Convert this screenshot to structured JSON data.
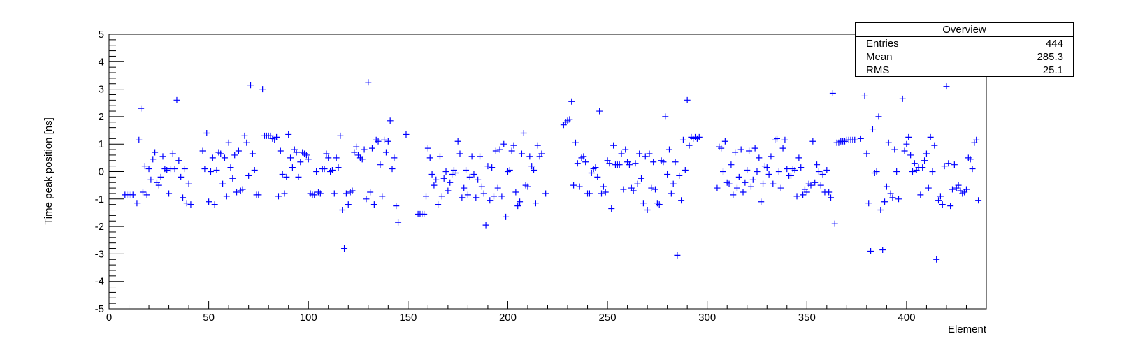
{
  "stats": {
    "title": "Overview",
    "rows": [
      {
        "label": "Entries",
        "value": "444"
      },
      {
        "label": "Mean",
        "value": "285.3"
      },
      {
        "label": "RMS",
        "value": "25.1"
      }
    ]
  },
  "chart_data": {
    "type": "scatter",
    "title": "",
    "xlabel": "Element",
    "ylabel": "Time peak position [ns]",
    "xlim": [
      0,
      440
    ],
    "ylim": [
      -5,
      5
    ],
    "xticks": [
      0,
      50,
      100,
      150,
      200,
      250,
      300,
      350,
      400
    ],
    "xtick_labels": [
      "0",
      "50",
      "100",
      "150",
      "200",
      "250",
      "300",
      "350",
      "400"
    ],
    "yticks": [
      -5,
      -4,
      -3,
      -2,
      -1,
      0,
      1,
      2,
      3,
      4,
      5
    ],
    "ytick_labels": [
      "-5",
      "-4",
      "-3",
      "-2",
      "-1",
      "0",
      "1",
      "2",
      "3",
      "4",
      "5"
    ],
    "marker": "+",
    "marker_color": "#0000ff",
    "grid": false,
    "points": [
      [
        8,
        -0.85
      ],
      [
        9,
        -0.85
      ],
      [
        10,
        -0.85
      ],
      [
        11,
        -0.85
      ],
      [
        12,
        -0.85
      ],
      [
        14,
        -1.15
      ],
      [
        15,
        1.15
      ],
      [
        16,
        2.3
      ],
      [
        17,
        -0.75
      ],
      [
        18,
        0.2
      ],
      [
        19,
        -0.85
      ],
      [
        20,
        0.1
      ],
      [
        21,
        -0.3
      ],
      [
        22,
        0.45
      ],
      [
        23,
        0.7
      ],
      [
        24,
        -0.4
      ],
      [
        25,
        -0.5
      ],
      [
        26,
        -0.2
      ],
      [
        27,
        0.55
      ],
      [
        28,
        0.1
      ],
      [
        29,
        0.05
      ],
      [
        30,
        -0.8
      ],
      [
        31,
        0.1
      ],
      [
        32,
        0.65
      ],
      [
        33,
        0.1
      ],
      [
        34,
        2.6
      ],
      [
        35,
        0.4
      ],
      [
        36,
        -0.2
      ],
      [
        37,
        -0.95
      ],
      [
        38,
        0.1
      ],
      [
        39,
        -1.15
      ],
      [
        40,
        -0.45
      ],
      [
        41,
        -1.2
      ],
      [
        47,
        0.75
      ],
      [
        48,
        0.1
      ],
      [
        49,
        1.4
      ],
      [
        50,
        -1.1
      ],
      [
        51,
        0.0
      ],
      [
        52,
        0.5
      ],
      [
        53,
        -1.2
      ],
      [
        54,
        0.05
      ],
      [
        55,
        0.7
      ],
      [
        56,
        0.65
      ],
      [
        57,
        -0.45
      ],
      [
        58,
        0.5
      ],
      [
        59,
        -0.9
      ],
      [
        60,
        1.05
      ],
      [
        61,
        0.15
      ],
      [
        62,
        -0.25
      ],
      [
        63,
        0.6
      ],
      [
        64,
        -0.75
      ],
      [
        65,
        0.75
      ],
      [
        66,
        -0.7
      ],
      [
        67,
        -0.65
      ],
      [
        68,
        1.3
      ],
      [
        69,
        1.05
      ],
      [
        70,
        -0.15
      ],
      [
        71,
        3.15
      ],
      [
        72,
        0.65
      ],
      [
        73,
        0.05
      ],
      [
        74,
        -0.85
      ],
      [
        75,
        -0.85
      ],
      [
        77,
        3.0
      ],
      [
        78,
        1.3
      ],
      [
        79,
        1.3
      ],
      [
        80,
        1.3
      ],
      [
        81,
        1.3
      ],
      [
        82,
        1.2
      ],
      [
        83,
        1.15
      ],
      [
        84,
        1.25
      ],
      [
        85,
        -0.9
      ],
      [
        86,
        0.75
      ],
      [
        87,
        -0.1
      ],
      [
        88,
        -0.8
      ],
      [
        89,
        -0.2
      ],
      [
        90,
        1.35
      ],
      [
        91,
        0.5
      ],
      [
        92,
        0.15
      ],
      [
        93,
        0.8
      ],
      [
        94,
        0.7
      ],
      [
        95,
        -0.2
      ],
      [
        96,
        0.35
      ],
      [
        97,
        0.7
      ],
      [
        98,
        0.65
      ],
      [
        99,
        0.6
      ],
      [
        100,
        0.45
      ],
      [
        101,
        -0.8
      ],
      [
        102,
        -0.85
      ],
      [
        103,
        -0.85
      ],
      [
        104,
        0.0
      ],
      [
        105,
        -0.75
      ],
      [
        106,
        -0.8
      ],
      [
        107,
        0.1
      ],
      [
        108,
        0.1
      ],
      [
        109,
        0.65
      ],
      [
        110,
        0.5
      ],
      [
        111,
        0.0
      ],
      [
        112,
        0.05
      ],
      [
        113,
        -0.8
      ],
      [
        114,
        0.5
      ],
      [
        115,
        0.15
      ],
      [
        116,
        1.3
      ],
      [
        117,
        -1.4
      ],
      [
        118,
        -2.8
      ],
      [
        119,
        -0.8
      ],
      [
        120,
        -1.2
      ],
      [
        121,
        -0.75
      ],
      [
        122,
        -0.7
      ],
      [
        123,
        0.7
      ],
      [
        124,
        0.9
      ],
      [
        125,
        0.6
      ],
      [
        126,
        0.5
      ],
      [
        127,
        0.45
      ],
      [
        128,
        0.8
      ],
      [
        129,
        -1.0
      ],
      [
        130,
        3.25
      ],
      [
        131,
        -0.75
      ],
      [
        132,
        0.85
      ],
      [
        133,
        -1.2
      ],
      [
        134,
        1.15
      ],
      [
        135,
        1.1
      ],
      [
        136,
        0.25
      ],
      [
        137,
        -0.9
      ],
      [
        138,
        1.15
      ],
      [
        139,
        0.7
      ],
      [
        140,
        1.1
      ],
      [
        141,
        1.85
      ],
      [
        142,
        0.1
      ],
      [
        143,
        0.5
      ],
      [
        144,
        -1.25
      ],
      [
        145,
        -1.85
      ],
      [
        149,
        1.35
      ],
      [
        155,
        -1.55
      ],
      [
        156,
        -1.55
      ],
      [
        157,
        -1.55
      ],
      [
        158,
        -1.55
      ],
      [
        159,
        -0.9
      ],
      [
        160,
        0.85
      ],
      [
        161,
        0.5
      ],
      [
        162,
        -0.1
      ],
      [
        163,
        -0.5
      ],
      [
        164,
        -0.3
      ],
      [
        165,
        -1.2
      ],
      [
        166,
        0.55
      ],
      [
        167,
        -0.9
      ],
      [
        168,
        -0.25
      ],
      [
        169,
        0.0
      ],
      [
        170,
        -0.7
      ],
      [
        171,
        -0.4
      ],
      [
        172,
        -0.1
      ],
      [
        173,
        0.05
      ],
      [
        174,
        -0.05
      ],
      [
        175,
        1.1
      ],
      [
        176,
        0.65
      ],
      [
        177,
        -0.95
      ],
      [
        178,
        -0.6
      ],
      [
        179,
        0.05
      ],
      [
        180,
        -0.85
      ],
      [
        181,
        -0.2
      ],
      [
        182,
        0.55
      ],
      [
        183,
        -0.1
      ],
      [
        184,
        -0.95
      ],
      [
        185,
        -0.3
      ],
      [
        186,
        0.55
      ],
      [
        187,
        -0.55
      ],
      [
        188,
        -0.8
      ],
      [
        189,
        -1.95
      ],
      [
        190,
        0.2
      ],
      [
        191,
        -1.05
      ],
      [
        192,
        0.15
      ],
      [
        193,
        -0.9
      ],
      [
        194,
        0.75
      ],
      [
        195,
        -0.6
      ],
      [
        196,
        0.8
      ],
      [
        197,
        -0.9
      ],
      [
        198,
        1.0
      ],
      [
        199,
        -1.65
      ],
      [
        200,
        0.0
      ],
      [
        201,
        0.05
      ],
      [
        202,
        0.75
      ],
      [
        203,
        0.95
      ],
      [
        204,
        -0.75
      ],
      [
        205,
        -1.25
      ],
      [
        206,
        -1.1
      ],
      [
        207,
        0.65
      ],
      [
        208,
        1.4
      ],
      [
        209,
        -0.5
      ],
      [
        210,
        -0.55
      ],
      [
        211,
        0.55
      ],
      [
        212,
        0.2
      ],
      [
        213,
        0.05
      ],
      [
        214,
        -1.15
      ],
      [
        215,
        0.95
      ],
      [
        216,
        0.55
      ],
      [
        217,
        0.65
      ],
      [
        219,
        -0.8
      ],
      [
        228,
        1.7
      ],
      [
        229,
        1.8
      ],
      [
        230,
        1.85
      ],
      [
        231,
        1.9
      ],
      [
        232,
        2.55
      ],
      [
        233,
        -0.5
      ],
      [
        234,
        1.05
      ],
      [
        235,
        0.3
      ],
      [
        236,
        -0.55
      ],
      [
        237,
        0.5
      ],
      [
        238,
        0.55
      ],
      [
        239,
        0.35
      ],
      [
        240,
        -0.8
      ],
      [
        241,
        -0.8
      ],
      [
        242,
        -0.05
      ],
      [
        243,
        0.1
      ],
      [
        244,
        0.15
      ],
      [
        245,
        -0.2
      ],
      [
        246,
        2.2
      ],
      [
        247,
        -0.8
      ],
      [
        248,
        -0.55
      ],
      [
        249,
        -0.75
      ],
      [
        250,
        0.4
      ],
      [
        251,
        0.3
      ],
      [
        252,
        -1.35
      ],
      [
        253,
        0.95
      ],
      [
        254,
        0.25
      ],
      [
        255,
        0.25
      ],
      [
        256,
        0.25
      ],
      [
        257,
        0.65
      ],
      [
        258,
        -0.65
      ],
      [
        259,
        0.8
      ],
      [
        260,
        0.35
      ],
      [
        261,
        0.25
      ],
      [
        262,
        -0.6
      ],
      [
        263,
        -0.7
      ],
      [
        264,
        0.3
      ],
      [
        265,
        -0.45
      ],
      [
        266,
        0.65
      ],
      [
        267,
        -0.25
      ],
      [
        268,
        -1.15
      ],
      [
        269,
        0.55
      ],
      [
        270,
        -1.4
      ],
      [
        271,
        0.65
      ],
      [
        272,
        -0.6
      ],
      [
        273,
        0.35
      ],
      [
        274,
        -0.65
      ],
      [
        275,
        -1.15
      ],
      [
        276,
        -1.2
      ],
      [
        277,
        0.4
      ],
      [
        278,
        0.35
      ],
      [
        279,
        2.0
      ],
      [
        280,
        -0.1
      ],
      [
        281,
        0.8
      ],
      [
        282,
        -0.8
      ],
      [
        283,
        -0.45
      ],
      [
        284,
        0.35
      ],
      [
        285,
        -3.05
      ],
      [
        286,
        -0.15
      ],
      [
        287,
        -1.05
      ],
      [
        288,
        1.15
      ],
      [
        289,
        0.05
      ],
      [
        290,
        2.6
      ],
      [
        291,
        0.95
      ],
      [
        292,
        1.25
      ],
      [
        293,
        1.2
      ],
      [
        294,
        1.25
      ],
      [
        295,
        1.2
      ],
      [
        296,
        1.25
      ],
      [
        305,
        -0.6
      ],
      [
        306,
        0.9
      ],
      [
        307,
        0.85
      ],
      [
        308,
        0.0
      ],
      [
        309,
        1.1
      ],
      [
        310,
        -0.4
      ],
      [
        311,
        -0.45
      ],
      [
        312,
        0.25
      ],
      [
        313,
        -0.85
      ],
      [
        314,
        0.7
      ],
      [
        315,
        -0.6
      ],
      [
        316,
        -0.2
      ],
      [
        317,
        0.8
      ],
      [
        318,
        -0.75
      ],
      [
        319,
        -0.4
      ],
      [
        320,
        0.05
      ],
      [
        321,
        0.75
      ],
      [
        322,
        -0.55
      ],
      [
        323,
        -0.3
      ],
      [
        324,
        0.85
      ],
      [
        325,
        0.0
      ],
      [
        326,
        0.5
      ],
      [
        327,
        -1.1
      ],
      [
        328,
        -0.45
      ],
      [
        329,
        0.2
      ],
      [
        330,
        0.15
      ],
      [
        331,
        -0.1
      ],
      [
        332,
        0.55
      ],
      [
        333,
        -0.45
      ],
      [
        334,
        1.15
      ],
      [
        335,
        1.2
      ],
      [
        336,
        0.0
      ],
      [
        337,
        -0.6
      ],
      [
        338,
        0.85
      ],
      [
        339,
        1.15
      ],
      [
        340,
        0.1
      ],
      [
        341,
        -0.15
      ],
      [
        342,
        -0.15
      ],
      [
        343,
        0.1
      ],
      [
        344,
        0.05
      ],
      [
        345,
        -0.9
      ],
      [
        346,
        0.5
      ],
      [
        347,
        0.15
      ],
      [
        348,
        -0.85
      ],
      [
        349,
        -0.65
      ],
      [
        350,
        -0.75
      ],
      [
        351,
        -0.45
      ],
      [
        352,
        -0.5
      ],
      [
        353,
        1.1
      ],
      [
        354,
        -0.4
      ],
      [
        355,
        0.25
      ],
      [
        356,
        0.0
      ],
      [
        357,
        -0.5
      ],
      [
        358,
        -0.1
      ],
      [
        359,
        -0.75
      ],
      [
        360,
        0.05
      ],
      [
        361,
        -0.75
      ],
      [
        362,
        -0.95
      ],
      [
        363,
        2.85
      ],
      [
        364,
        -1.9
      ],
      [
        365,
        1.05
      ],
      [
        366,
        1.05
      ],
      [
        367,
        1.1
      ],
      [
        368,
        1.1
      ],
      [
        369,
        1.1
      ],
      [
        370,
        1.15
      ],
      [
        371,
        1.15
      ],
      [
        372,
        1.15
      ],
      [
        373,
        1.15
      ],
      [
        374,
        1.15
      ],
      [
        377,
        1.2
      ],
      [
        379,
        2.75
      ],
      [
        380,
        0.65
      ],
      [
        381,
        -1.15
      ],
      [
        382,
        -2.9
      ],
      [
        383,
        1.55
      ],
      [
        384,
        -0.05
      ],
      [
        385,
        0.0
      ],
      [
        386,
        2.0
      ],
      [
        387,
        -1.4
      ],
      [
        388,
        -2.85
      ],
      [
        389,
        -1.1
      ],
      [
        390,
        -0.55
      ],
      [
        391,
        1.05
      ],
      [
        392,
        -0.8
      ],
      [
        393,
        -0.95
      ],
      [
        394,
        0.8
      ],
      [
        395,
        0.0
      ],
      [
        396,
        -1.0
      ],
      [
        398,
        2.65
      ],
      [
        399,
        0.75
      ],
      [
        400,
        1.0
      ],
      [
        401,
        1.25
      ],
      [
        402,
        0.6
      ],
      [
        403,
        0.0
      ],
      [
        404,
        0.3
      ],
      [
        405,
        0.05
      ],
      [
        406,
        0.15
      ],
      [
        407,
        -0.85
      ],
      [
        408,
        0.15
      ],
      [
        409,
        0.4
      ],
      [
        410,
        0.65
      ],
      [
        411,
        -0.6
      ],
      [
        412,
        1.25
      ],
      [
        413,
        0.0
      ],
      [
        414,
        0.95
      ],
      [
        415,
        -3.2
      ],
      [
        416,
        -1.05
      ],
      [
        417,
        -0.9
      ],
      [
        418,
        -1.2
      ],
      [
        419,
        0.2
      ],
      [
        420,
        3.1
      ],
      [
        421,
        0.3
      ],
      [
        422,
        -1.25
      ],
      [
        423,
        -0.65
      ],
      [
        424,
        0.25
      ],
      [
        425,
        -0.6
      ],
      [
        426,
        -0.5
      ],
      [
        427,
        -0.7
      ],
      [
        428,
        -0.8
      ],
      [
        429,
        -0.75
      ],
      [
        430,
        -0.65
      ],
      [
        431,
        0.5
      ],
      [
        432,
        0.45
      ],
      [
        433,
        0.1
      ],
      [
        434,
        1.05
      ],
      [
        435,
        1.15
      ],
      [
        436,
        -1.05
      ]
    ]
  }
}
